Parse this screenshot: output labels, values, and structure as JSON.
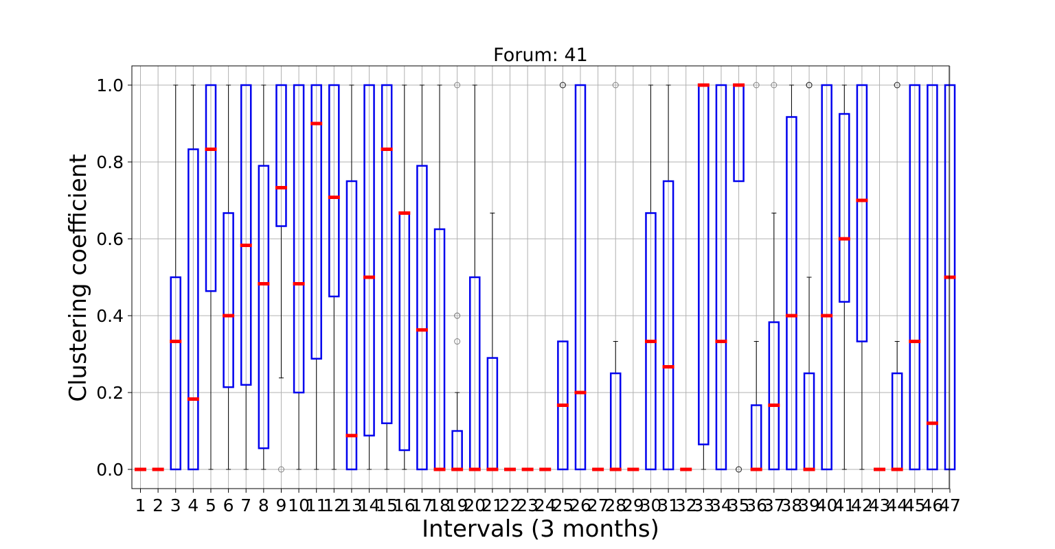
{
  "chart_data": {
    "type": "box",
    "title": "Forum: 41",
    "xlabel": "Intervals (3 months)",
    "ylabel": "Clustering coefficient",
    "ylim": [
      -0.05,
      1.05
    ],
    "yticks": [
      "0.0",
      "0.2",
      "0.4",
      "0.6",
      "0.8",
      "1.0"
    ],
    "ytick_values": [
      0,
      0.2,
      0.4,
      0.6,
      0.8,
      1.0
    ],
    "grid": true,
    "colors": {
      "box": "#0000ee",
      "median": "#ff0000",
      "whisker": "#000000",
      "grid": "#b0b0b0",
      "flier": "#7f7f7f"
    },
    "categories": [
      "1",
      "2",
      "3",
      "4",
      "5",
      "6",
      "7",
      "8",
      "9",
      "10",
      "11",
      "12",
      "13",
      "14",
      "15",
      "16",
      "17",
      "18",
      "19",
      "20",
      "21",
      "22",
      "23",
      "24",
      "25",
      "26",
      "27",
      "28",
      "29",
      "30",
      "31",
      "32",
      "33",
      "34",
      "35",
      "36",
      "37",
      "38",
      "39",
      "40",
      "41",
      "42",
      "43",
      "44",
      "45",
      "46",
      "47"
    ],
    "boxes": [
      {
        "q1": 0,
        "q3": 0,
        "median": 0,
        "wlo": 0,
        "whi": 0,
        "fliers": []
      },
      {
        "q1": 0,
        "q3": 0,
        "median": 0,
        "wlo": 0,
        "whi": 0,
        "fliers": []
      },
      {
        "q1": 0,
        "q3": 0.5,
        "median": 0.333,
        "wlo": 0,
        "whi": 1,
        "fliers": []
      },
      {
        "q1": 0,
        "q3": 0.833,
        "median": 0.183,
        "wlo": 0,
        "whi": 1,
        "fliers": []
      },
      {
        "q1": 0.464,
        "q3": 1,
        "median": 0.833,
        "wlo": 0,
        "whi": 1,
        "fliers": []
      },
      {
        "q1": 0.214,
        "q3": 0.667,
        "median": 0.4,
        "wlo": 0,
        "whi": 1,
        "fliers": []
      },
      {
        "q1": 0.22,
        "q3": 1,
        "median": 0.583,
        "wlo": 0,
        "whi": 1,
        "fliers": []
      },
      {
        "q1": 0.055,
        "q3": 0.79,
        "median": 0.483,
        "wlo": 0,
        "whi": 1,
        "fliers": []
      },
      {
        "q1": 0.633,
        "q3": 1,
        "median": 0.733,
        "wlo": 0.238,
        "whi": 1,
        "fliers": [
          0
        ]
      },
      {
        "q1": 0.2,
        "q3": 1,
        "median": 0.483,
        "wlo": 0,
        "whi": 1,
        "fliers": []
      },
      {
        "q1": 0.288,
        "q3": 1,
        "median": 0.9,
        "wlo": 0,
        "whi": 1,
        "fliers": []
      },
      {
        "q1": 0.45,
        "q3": 1,
        "median": 0.708,
        "wlo": 0,
        "whi": 1,
        "fliers": []
      },
      {
        "q1": 0,
        "q3": 0.75,
        "median": 0.088,
        "wlo": 0,
        "whi": 1,
        "fliers": []
      },
      {
        "q1": 0.088,
        "q3": 1,
        "median": 0.5,
        "wlo": 0,
        "whi": 1,
        "fliers": []
      },
      {
        "q1": 0.12,
        "q3": 1,
        "median": 0.833,
        "wlo": 0,
        "whi": 1,
        "fliers": []
      },
      {
        "q1": 0.05,
        "q3": 0.667,
        "median": 0.667,
        "wlo": 0,
        "whi": 1,
        "fliers": []
      },
      {
        "q1": 0,
        "q3": 0.79,
        "median": 0.363,
        "wlo": 0,
        "whi": 1,
        "fliers": []
      },
      {
        "q1": 0,
        "q3": 0.625,
        "median": 0,
        "wlo": 0,
        "whi": 1,
        "fliers": []
      },
      {
        "q1": 0,
        "q3": 0.1,
        "median": 0,
        "wlo": 0,
        "whi": 0.2,
        "fliers": [
          0.333,
          0.4,
          0.4,
          1
        ]
      },
      {
        "q1": 0,
        "q3": 0.5,
        "median": 0,
        "wlo": 0,
        "whi": 1,
        "fliers": []
      },
      {
        "q1": 0,
        "q3": 0.29,
        "median": 0,
        "wlo": 0,
        "whi": 0.667,
        "fliers": []
      },
      {
        "q1": 0,
        "q3": 0,
        "median": 0,
        "wlo": 0,
        "whi": 0,
        "fliers": []
      },
      {
        "q1": 0,
        "q3": 0,
        "median": 0,
        "wlo": 0,
        "whi": 0,
        "fliers": []
      },
      {
        "q1": 0,
        "q3": 0,
        "median": 0,
        "wlo": 0,
        "whi": 0,
        "fliers": []
      },
      {
        "q1": 0,
        "q3": 0.333,
        "median": 0.167,
        "wlo": 0,
        "whi": 0.333,
        "fliers": [
          1,
          1
        ]
      },
      {
        "q1": 0,
        "q3": 1,
        "median": 0.2,
        "wlo": 0,
        "whi": 1,
        "fliers": []
      },
      {
        "q1": 0,
        "q3": 0,
        "median": 0,
        "wlo": 0,
        "whi": 0,
        "fliers": []
      },
      {
        "q1": 0,
        "q3": 0.25,
        "median": 0,
        "wlo": 0,
        "whi": 0.333,
        "fliers": [
          1
        ]
      },
      {
        "q1": 0,
        "q3": 0,
        "median": 0,
        "wlo": 0,
        "whi": 0,
        "fliers": []
      },
      {
        "q1": 0,
        "q3": 0.667,
        "median": 0.333,
        "wlo": 0,
        "whi": 1,
        "fliers": []
      },
      {
        "q1": 0,
        "q3": 0.75,
        "median": 0.267,
        "wlo": 0,
        "whi": 1,
        "fliers": []
      },
      {
        "q1": 0,
        "q3": 0,
        "median": 0,
        "wlo": 0,
        "whi": 0,
        "fliers": []
      },
      {
        "q1": 0.065,
        "q3": 1,
        "median": 1,
        "wlo": 0,
        "whi": 1,
        "fliers": []
      },
      {
        "q1": 0,
        "q3": 1,
        "median": 0.333,
        "wlo": 0,
        "whi": 1,
        "fliers": []
      },
      {
        "q1": 0.75,
        "q3": 1,
        "median": 1,
        "wlo": 0.75,
        "whi": 1,
        "fliers": [
          0,
          0
        ]
      },
      {
        "q1": 0,
        "q3": 0.167,
        "median": 0,
        "wlo": 0,
        "whi": 0.333,
        "fliers": [
          1
        ]
      },
      {
        "q1": 0,
        "q3": 0.383,
        "median": 0.167,
        "wlo": 0,
        "whi": 0.667,
        "fliers": [
          1
        ]
      },
      {
        "q1": 0,
        "q3": 0.917,
        "median": 0.4,
        "wlo": 0,
        "whi": 1,
        "fliers": []
      },
      {
        "q1": 0,
        "q3": 0.25,
        "median": 0,
        "wlo": 0,
        "whi": 0.5,
        "fliers": [
          1,
          1,
          1
        ]
      },
      {
        "q1": 0,
        "q3": 1,
        "median": 0.4,
        "wlo": 0,
        "whi": 1,
        "fliers": []
      },
      {
        "q1": 0.436,
        "q3": 0.925,
        "median": 0.6,
        "wlo": 0,
        "whi": 1,
        "fliers": []
      },
      {
        "q1": 0.333,
        "q3": 1,
        "median": 0.7,
        "wlo": 0,
        "whi": 1,
        "fliers": []
      },
      {
        "q1": 0,
        "q3": 0,
        "median": 0,
        "wlo": 0,
        "whi": 0,
        "fliers": []
      },
      {
        "q1": 0,
        "q3": 0.25,
        "median": 0,
        "wlo": 0,
        "whi": 0.333,
        "fliers": [
          1,
          1
        ]
      },
      {
        "q1": 0,
        "q3": 1,
        "median": 0.333,
        "wlo": 0,
        "whi": 1,
        "fliers": []
      },
      {
        "q1": 0,
        "q3": 1,
        "median": 0.12,
        "wlo": 0,
        "whi": 1,
        "fliers": []
      },
      {
        "q1": 0,
        "q3": 1,
        "median": 0.5,
        "wlo": 0,
        "whi": 1,
        "fliers": []
      }
    ]
  }
}
